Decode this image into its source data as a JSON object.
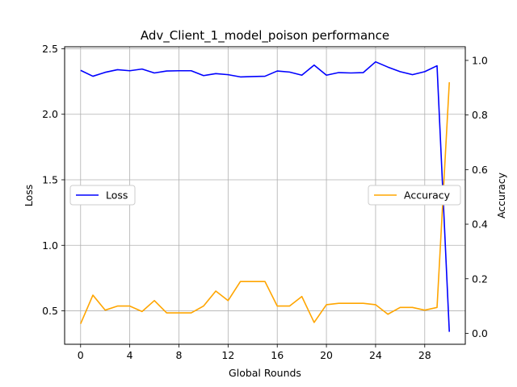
{
  "chart_data": {
    "type": "line",
    "title": "Adv_Client_1_model_poison performance",
    "xlabel": "Global Rounds",
    "ylabel_left": "Loss",
    "ylabel_right": "Accuracy",
    "x": [
      0,
      1,
      2,
      3,
      4,
      5,
      6,
      7,
      8,
      9,
      10,
      11,
      12,
      13,
      14,
      15,
      16,
      17,
      18,
      19,
      20,
      21,
      22,
      23,
      24,
      25,
      26,
      27,
      28,
      29,
      30
    ],
    "xlim": [
      -1.3,
      31.3
    ],
    "ylim_left": [
      0.245,
      2.515
    ],
    "ylim_right": [
      -0.04,
      1.05
    ],
    "x_ticks": [
      0,
      4,
      8,
      12,
      16,
      20,
      24,
      28
    ],
    "x_tick_labels": [
      "0",
      "4",
      "8",
      "12",
      "16",
      "20",
      "24",
      "28"
    ],
    "y_left_ticks": [
      0.5,
      1.0,
      1.5,
      2.0,
      2.5
    ],
    "y_left_tick_labels": [
      "0.5",
      "1.0",
      "1.5",
      "2.0",
      "2.5"
    ],
    "y_right_ticks": [
      0.0,
      0.2,
      0.4,
      0.6,
      0.8,
      1.0
    ],
    "y_right_tick_labels": [
      "0.0",
      "0.2",
      "0.4",
      "0.6",
      "0.8",
      "1.0"
    ],
    "grid": true,
    "series": [
      {
        "name": "Loss",
        "axis": "left",
        "color": "#0000ff",
        "legend_position": "center-left",
        "values": [
          2.335,
          2.29,
          2.32,
          2.34,
          2.332,
          2.345,
          2.315,
          2.33,
          2.332,
          2.332,
          2.295,
          2.31,
          2.302,
          2.285,
          2.288,
          2.29,
          2.33,
          2.322,
          2.298,
          2.375,
          2.298,
          2.318,
          2.315,
          2.318,
          2.4,
          2.36,
          2.325,
          2.302,
          2.325,
          2.37,
          0.34
        ]
      },
      {
        "name": "Accuracy",
        "axis": "right",
        "color": "#ffa500",
        "legend_position": "center-right",
        "values": [
          0.035,
          0.14,
          0.085,
          0.1,
          0.1,
          0.08,
          0.12,
          0.075,
          0.075,
          0.075,
          0.1,
          0.155,
          0.12,
          0.19,
          0.19,
          0.19,
          0.1,
          0.1,
          0.135,
          0.04,
          0.105,
          0.11,
          0.11,
          0.11,
          0.105,
          0.07,
          0.095,
          0.095,
          0.085,
          0.095,
          0.92
        ]
      }
    ]
  }
}
